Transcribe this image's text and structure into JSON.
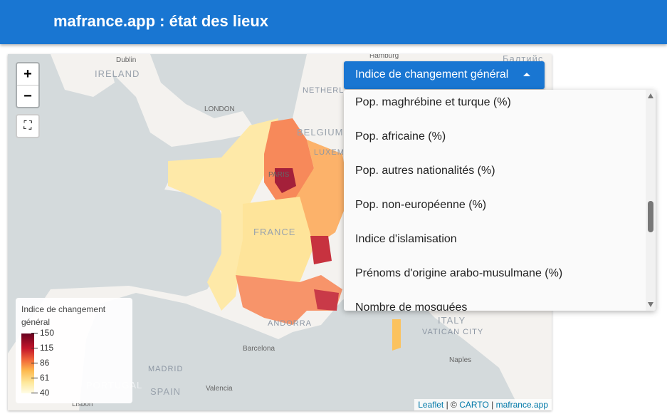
{
  "header": {
    "title": "mafrance.app : état des lieux"
  },
  "map": {
    "labels": {
      "ireland": "IRELAND",
      "dublin": "Dublin",
      "london": "LONDON",
      "netherlands": "NETHERL",
      "belgium": "BELGIUM",
      "lux": "LUXEM",
      "paris": "PARIS",
      "france": "FRANCE",
      "andorra": "ANDORRA",
      "barcelona": "Barcelona",
      "madrid": "MADRID",
      "spain": "SPAIN",
      "portugal": "PORTUGAL",
      "lisbon": "Lisbon",
      "valencia": "Valencia",
      "italy": "ITALY",
      "vatican": "VATICAN CITY",
      "naples": "Naples",
      "hamburg": "Hamburg",
      "baltic": "Балтийс"
    },
    "controls": {
      "zoom_in": "+",
      "zoom_out": "−",
      "fullscreen": "⛶"
    },
    "legend": {
      "title": "Indice de changement général",
      "ticks": [
        "150",
        "115",
        "86",
        "61",
        "40"
      ],
      "colors": [
        "#67001f",
        "#c4152a",
        "#f26b3a",
        "#fdb94e",
        "#fffce6"
      ]
    },
    "attribution": {
      "leaflet": "Leaflet",
      "sep1": " | © ",
      "carto": "CARTO",
      "sep2": " | ",
      "site": "mafrance.app"
    }
  },
  "select": {
    "value": "Indice de changement général",
    "options": [
      "Pop. maghrébine et turque (%)",
      "Pop. africaine (%)",
      "Pop. autres nationalités (%)",
      "Pop. non-européenne (%)",
      "Indice d'islamisation",
      "Prénoms d'origine arabo-musulmane (%)",
      "Nombre de mosquées"
    ],
    "scroll_fraction": 0.55
  }
}
